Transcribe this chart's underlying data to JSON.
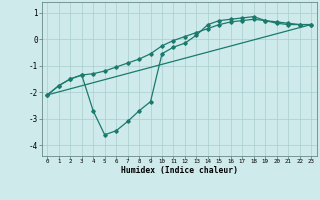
{
  "xlabel": "Humidex (Indice chaleur)",
  "background_color": "#ceeaea",
  "grid_color": "#aacece",
  "line_color": "#1a7a6e",
  "xlim": [
    -0.5,
    23.5
  ],
  "ylim": [
    -4.4,
    1.4
  ],
  "yticks": [
    1,
    0,
    -1,
    -2,
    -3,
    -4
  ],
  "xticks": [
    0,
    1,
    2,
    3,
    4,
    5,
    6,
    7,
    8,
    9,
    10,
    11,
    12,
    13,
    14,
    15,
    16,
    17,
    18,
    19,
    20,
    21,
    22,
    23
  ],
  "line1_x": [
    0,
    1,
    2,
    3,
    4,
    5,
    6,
    7,
    8,
    9,
    10,
    11,
    12,
    13,
    14,
    15,
    16,
    17,
    18,
    19,
    20,
    21,
    22,
    23
  ],
  "line1_y": [
    -2.1,
    -1.75,
    -1.5,
    -1.35,
    -1.3,
    -1.2,
    -1.05,
    -0.9,
    -0.75,
    -0.55,
    -0.25,
    -0.05,
    0.1,
    0.25,
    0.4,
    0.55,
    0.65,
    0.7,
    0.75,
    0.7,
    0.65,
    0.6,
    0.55,
    0.55
  ],
  "line2_x": [
    0,
    1,
    2,
    3,
    4,
    5,
    6,
    7,
    8,
    9,
    10,
    11,
    12,
    13,
    14,
    15,
    16,
    17,
    18,
    19,
    20,
    21,
    22,
    23
  ],
  "line2_y": [
    -2.1,
    -1.75,
    -1.5,
    -1.35,
    -2.7,
    -3.6,
    -3.45,
    -3.1,
    -2.7,
    -2.35,
    -0.55,
    -0.3,
    -0.15,
    0.15,
    0.55,
    0.7,
    0.75,
    0.8,
    0.85,
    0.7,
    0.6,
    0.55,
    0.55,
    0.55
  ],
  "line3_x": [
    0,
    23
  ],
  "line3_y": [
    -2.1,
    0.55
  ]
}
